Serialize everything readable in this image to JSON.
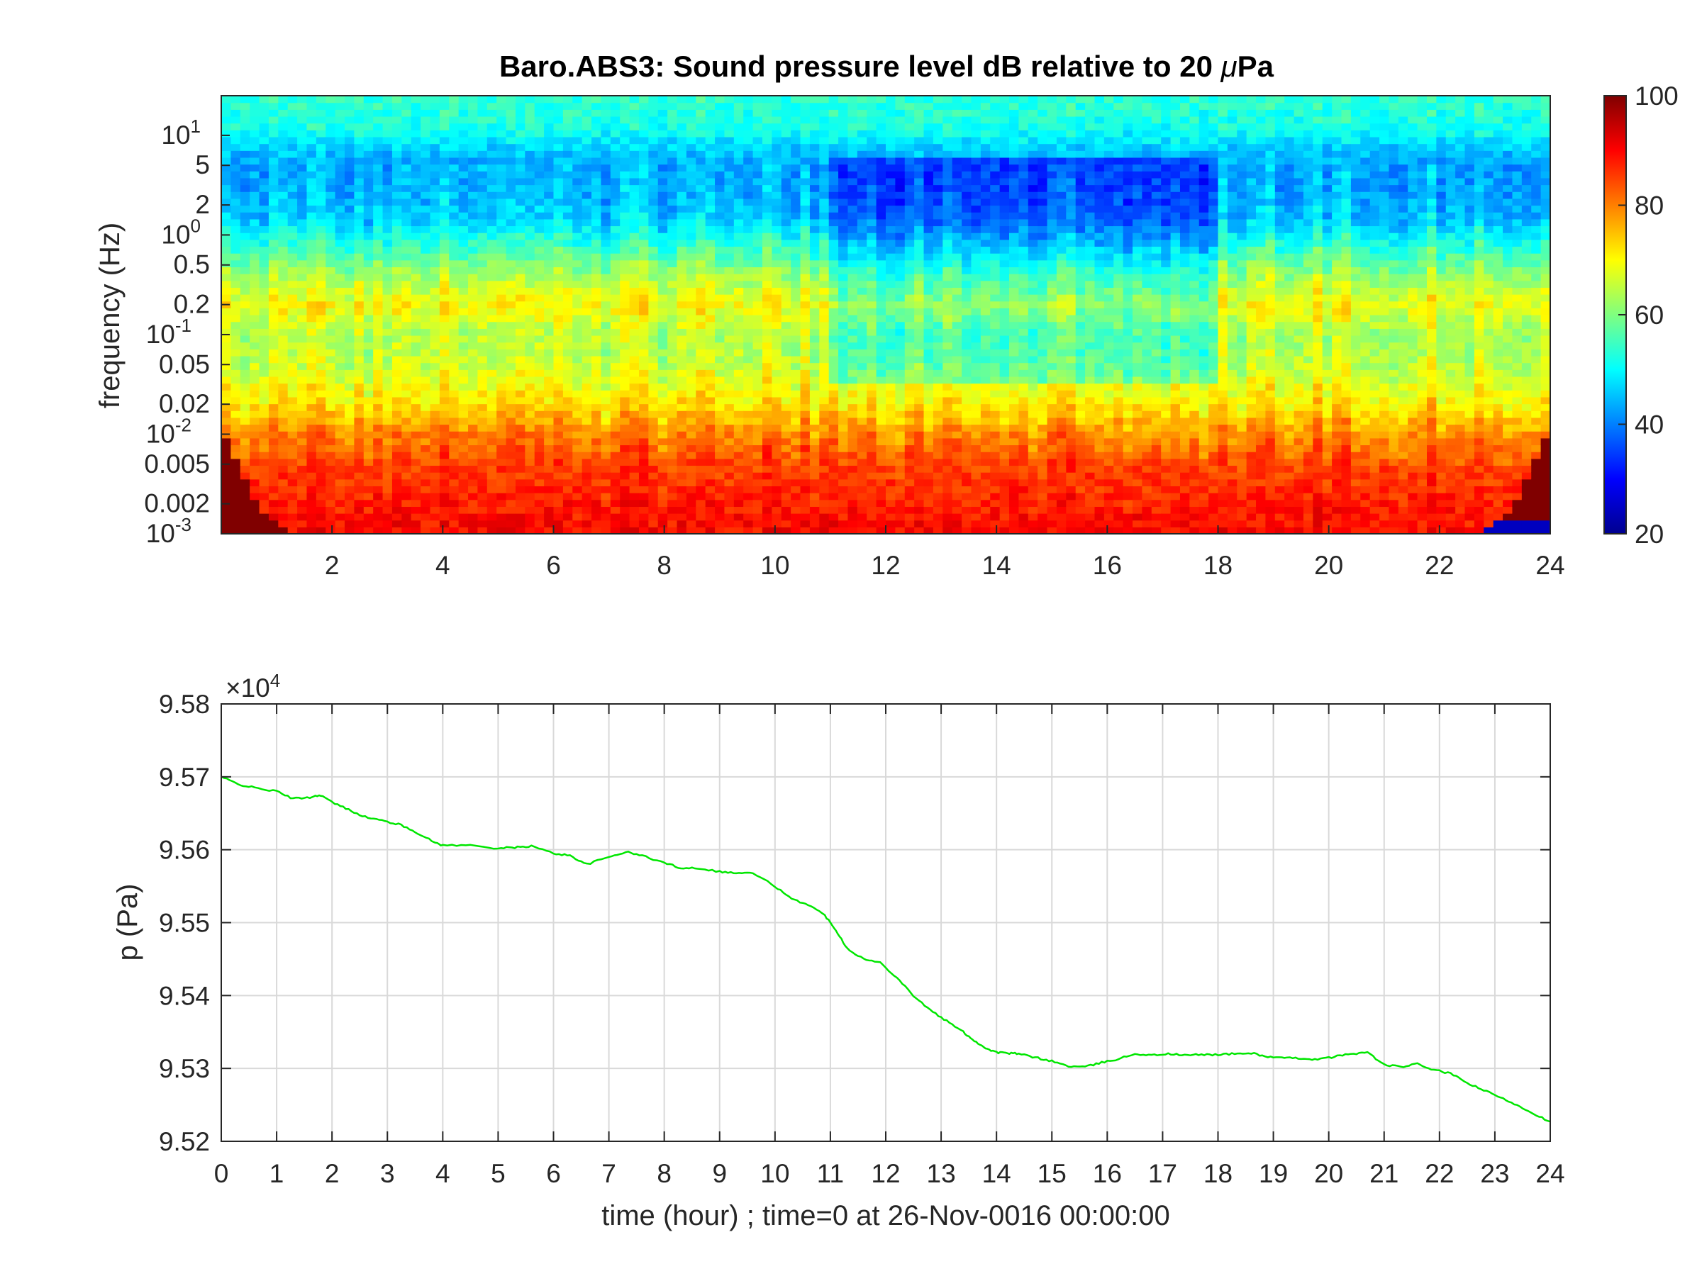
{
  "chart_data": [
    {
      "type": "heatmap",
      "title": "Baro.ABS3: Sound pressure level dB relative to 20 μPa",
      "title_main": "Baro.ABS3: Sound pressure level dB relative to 20 ",
      "title_unit_mu": "μ",
      "title_unit_rest": "Pa",
      "xlabel": "",
      "ylabel": "frequency (Hz)",
      "xlim": [
        0,
        24
      ],
      "ylim": [
        0.001,
        25
      ],
      "y_scale": "log",
      "x_ticks": [
        2,
        4,
        6,
        8,
        10,
        12,
        14,
        16,
        18,
        20,
        22,
        24
      ],
      "x_tick_labels": [
        "2",
        "4",
        "6",
        "8",
        "10",
        "12",
        "14",
        "16",
        "18",
        "20",
        "22",
        "24"
      ],
      "y_ticks": [
        {
          "value": 10,
          "mantissa": "10",
          "exponent": "1"
        },
        {
          "value": 5,
          "mantissa": "5",
          "exponent": ""
        },
        {
          "value": 2,
          "mantissa": "2",
          "exponent": ""
        },
        {
          "value": 1,
          "mantissa": "10",
          "exponent": "0"
        },
        {
          "value": 0.5,
          "mantissa": "0.5",
          "exponent": ""
        },
        {
          "value": 0.2,
          "mantissa": "0.2",
          "exponent": ""
        },
        {
          "value": 0.1,
          "mantissa": "10",
          "exponent": "-1"
        },
        {
          "value": 0.05,
          "mantissa": "0.05",
          "exponent": ""
        },
        {
          "value": 0.02,
          "mantissa": "0.02",
          "exponent": ""
        },
        {
          "value": 0.01,
          "mantissa": "10",
          "exponent": "-2"
        },
        {
          "value": 0.005,
          "mantissa": "0.005",
          "exponent": ""
        },
        {
          "value": 0.002,
          "mantissa": "0.002",
          "exponent": ""
        },
        {
          "value": 0.001,
          "mantissa": "10",
          "exponent": "-3"
        }
      ],
      "colorbar": {
        "colormap": "jet",
        "clim": [
          20,
          100
        ],
        "ticks": [
          20,
          40,
          60,
          80,
          100
        ],
        "tick_labels": [
          "20",
          "40",
          "60",
          "80",
          "100"
        ]
      },
      "spl_profile_db": [
        {
          "freq": 25,
          "db": 54
        },
        {
          "freq": 12,
          "db": 52
        },
        {
          "freq": 6,
          "db": 44
        },
        {
          "freq": 3,
          "db": 44
        },
        {
          "freq": 1.5,
          "db": 46
        },
        {
          "freq": 0.8,
          "db": 54
        },
        {
          "freq": 0.4,
          "db": 63
        },
        {
          "freq": 0.2,
          "db": 70
        },
        {
          "freq": 0.1,
          "db": 64
        },
        {
          "freq": 0.05,
          "db": 66
        },
        {
          "freq": 0.02,
          "db": 72
        },
        {
          "freq": 0.01,
          "db": 80
        },
        {
          "freq": 0.005,
          "db": 85
        },
        {
          "freq": 0.002,
          "db": 88
        },
        {
          "freq": 0.001,
          "db": 90
        }
      ],
      "quiet_period_hours": [
        11,
        18
      ],
      "quiet_period_drop_db": 8
    },
    {
      "type": "line",
      "title": "",
      "xlabel": "time (hour) ; time=0 at 26-Nov-0016 00:00:00",
      "ylabel": "p (Pa)",
      "y_multiplier_base": "×10",
      "y_multiplier_exp": "4",
      "xlim": [
        0,
        24
      ],
      "ylim": [
        95200,
        95800
      ],
      "grid": true,
      "x_ticks": [
        0,
        1,
        2,
        3,
        4,
        5,
        6,
        7,
        8,
        9,
        10,
        11,
        12,
        13,
        14,
        15,
        16,
        17,
        18,
        19,
        20,
        21,
        22,
        23,
        24
      ],
      "x_tick_labels": [
        "0",
        "1",
        "2",
        "3",
        "4",
        "5",
        "6",
        "7",
        "8",
        "9",
        "10",
        "11",
        "12",
        "13",
        "14",
        "15",
        "16",
        "17",
        "18",
        "19",
        "20",
        "21",
        "22",
        "23",
        "24"
      ],
      "y_ticks": [
        95200,
        95300,
        95400,
        95500,
        95600,
        95700,
        95800
      ],
      "y_tick_labels": [
        "9.52",
        "9.53",
        "9.54",
        "9.55",
        "9.56",
        "9.57",
        "9.58"
      ],
      "line_color": "#00e600",
      "series": [
        {
          "x": [
            0,
            0.3,
            0.6,
            1.0,
            1.3,
            1.6,
            1.8,
            2.0,
            2.3,
            2.6,
            2.9,
            3.2,
            3.5,
            3.8,
            4.0,
            4.5,
            5.0,
            5.3,
            5.6,
            6.0,
            6.3,
            6.6,
            7.0,
            7.3,
            7.6,
            8.0,
            8.3,
            8.6,
            9.0,
            9.3,
            9.6,
            10.0,
            10.3,
            10.6,
            10.9,
            11.1,
            11.3,
            11.6,
            11.9,
            12.2,
            12.5,
            12.8,
            13.1,
            13.4,
            13.6,
            13.8,
            14.0,
            14.2,
            14.4,
            14.7,
            15.0,
            15.3,
            15.6,
            15.9,
            16.2,
            16.5,
            16.8,
            17.1,
            17.4,
            17.7,
            18.0,
            18.3,
            18.6,
            18.9,
            19.2,
            19.5,
            19.8,
            20.1,
            20.4,
            20.7,
            21.0,
            21.3,
            21.6,
            21.9,
            22.2,
            22.5,
            22.8,
            23.1,
            23.4,
            23.7,
            24.0
          ],
          "values": [
            95700,
            95690,
            95685,
            95680,
            95670,
            95672,
            95675,
            95665,
            95655,
            95645,
            95640,
            95635,
            95625,
            95612,
            95606,
            95606,
            95602,
            95603,
            95605,
            95595,
            95592,
            95580,
            95590,
            95597,
            95592,
            95582,
            95575,
            95575,
            95570,
            95568,
            95568,
            95550,
            95532,
            95525,
            95510,
            95490,
            95465,
            95450,
            95445,
            95425,
            95400,
            95380,
            95365,
            95350,
            95338,
            95328,
            95322,
            95321,
            95320,
            95315,
            95310,
            95303,
            95302,
            95308,
            95313,
            95320,
            95318,
            95320,
            95318,
            95319,
            95319,
            95320,
            95321,
            95316,
            95314,
            95314,
            95312,
            95316,
            95320,
            95322,
            95305,
            95302,
            95306,
            95298,
            95293,
            95280,
            95270,
            95260,
            95250,
            95238,
            95227
          ]
        }
      ]
    }
  ]
}
